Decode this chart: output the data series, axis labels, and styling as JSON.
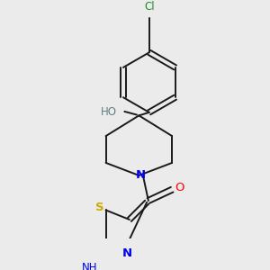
{
  "bg_color": "#ebebeb",
  "bond_color": "#1a1a1a",
  "figsize": [
    3.0,
    3.0
  ],
  "dpi": 100,
  "lw": 1.4,
  "colors": {
    "Cl": "#228B22",
    "O": "#FF0000",
    "HO": "#5f8080",
    "N": "#0000EE",
    "S": "#ccaa00",
    "bond": "#1a1a1a"
  }
}
